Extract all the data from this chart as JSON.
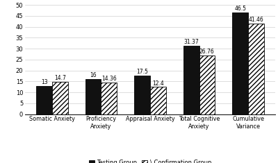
{
  "categories": [
    "Somatic Anxiety",
    "Proficiency\nAnxiety",
    "Appraisal Anxiety",
    "Total Cognitive\nAnxiety",
    "Cumulative\nVariance"
  ],
  "testing_group": [
    13,
    16,
    17.5,
    31.37,
    46.5
  ],
  "confirmation_group": [
    14.7,
    14.36,
    12.4,
    26.76,
    41.46
  ],
  "testing_labels": [
    "13",
    "16",
    "17.5",
    "31.37",
    "46.5"
  ],
  "confirmation_labels": [
    "14.7",
    "14.36",
    "12.4",
    "26.76",
    "41.46"
  ],
  "ylim": [
    0,
    50
  ],
  "yticks": [
    0,
    5,
    10,
    15,
    20,
    25,
    30,
    35,
    40,
    45,
    50
  ],
  "bar_width": 0.32,
  "testing_color": "#111111",
  "confirmation_color": "#ffffff",
  "background_color": "#ffffff",
  "legend_testing": "Testing Group",
  "legend_confirmation": "Confirmation Group",
  "label_fontsize": 5.5,
  "tick_fontsize": 6.0,
  "xtick_fontsize": 5.8
}
